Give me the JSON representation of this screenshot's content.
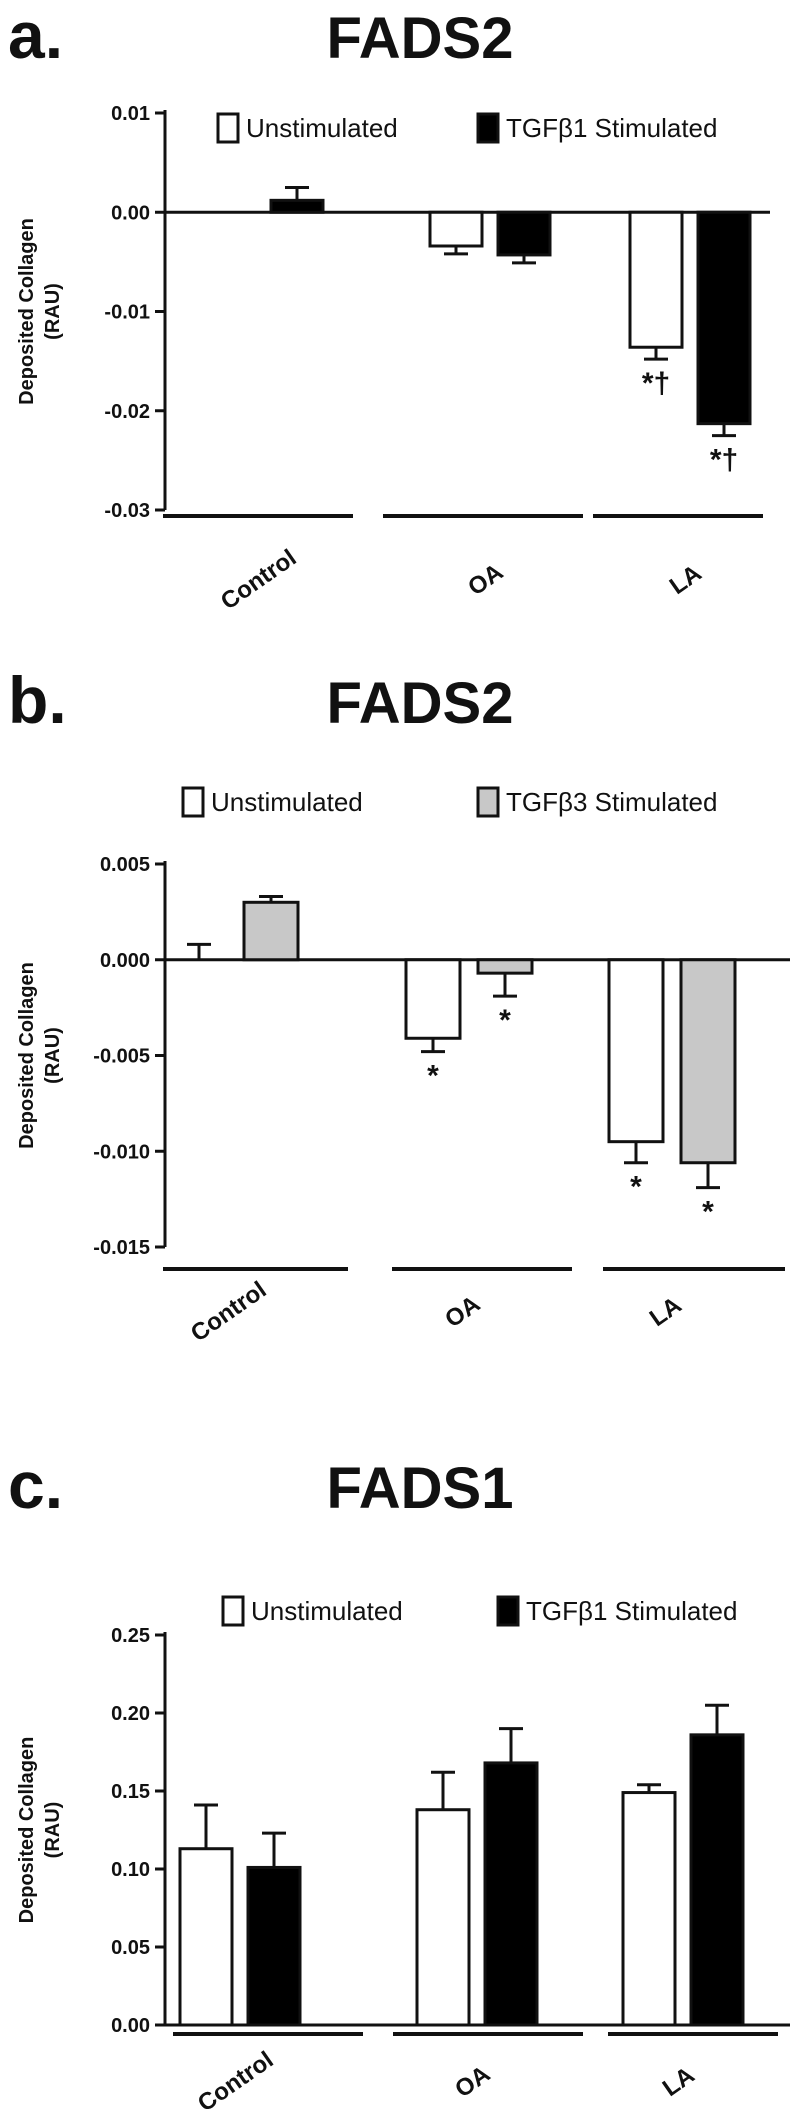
{
  "chart_data": [
    {
      "type": "bar",
      "panel_letter": "a.",
      "title": "FADS2",
      "ylabel_line1": "Deposited Collagen",
      "ylabel_line2": "(RAU)",
      "ylim": [
        -0.03,
        0.01
      ],
      "yticks": [
        "0.01",
        "0.00",
        "-0.01",
        "-0.02",
        "-0.03"
      ],
      "ytick_values": [
        0.01,
        0.0,
        -0.01,
        -0.02,
        -0.03
      ],
      "categories": [
        "Control",
        "OA",
        "LA"
      ],
      "series": [
        {
          "name": "Unstimulated",
          "color": "#ffffff",
          "values": [
            0.0,
            -0.0034,
            -0.0136
          ],
          "errors": [
            0.0,
            0.0008,
            0.0012
          ]
        },
        {
          "name": "TGFβ1 Stimulated",
          "color": "#000000",
          "values": [
            0.0012,
            -0.0043,
            -0.0213
          ],
          "errors": [
            0.0013,
            0.0008,
            0.0012
          ]
        }
      ],
      "annotations": [
        {
          "series": 0,
          "category": 2,
          "text": "*†"
        },
        {
          "series": 1,
          "category": 2,
          "text": "*†"
        }
      ],
      "legend_position": "top"
    },
    {
      "type": "bar",
      "panel_letter": "b.",
      "title": "FADS2",
      "ylabel_line1": "Deposited Collagen",
      "ylabel_line2": "(RAU)",
      "ylim": [
        -0.015,
        0.005
      ],
      "yticks": [
        "0.005",
        "0.000",
        "-0.005",
        "-0.010",
        "-0.015"
      ],
      "ytick_values": [
        0.005,
        0.0,
        -0.005,
        -0.01,
        -0.015
      ],
      "categories": [
        "Control",
        "OA",
        "LA"
      ],
      "series": [
        {
          "name": "Unstimulated",
          "color": "#ffffff",
          "values": [
            0.0,
            -0.0041,
            -0.0095
          ],
          "errors": [
            0.0008,
            0.0007,
            0.0011
          ]
        },
        {
          "name": "TGFβ3 Stimulated",
          "color": "#c8c8c8",
          "values": [
            0.003,
            -0.0007,
            -0.0106
          ],
          "errors": [
            0.0003,
            0.0012,
            0.0013
          ]
        }
      ],
      "annotations": [
        {
          "series": 0,
          "category": 1,
          "text": "*"
        },
        {
          "series": 1,
          "category": 1,
          "text": "*"
        },
        {
          "series": 0,
          "category": 2,
          "text": "*"
        },
        {
          "series": 1,
          "category": 2,
          "text": "*"
        }
      ],
      "legend_position": "top"
    },
    {
      "type": "bar",
      "panel_letter": "c.",
      "title": "FADS1",
      "ylabel_line1": "Deposited Collagen",
      "ylabel_line2": "(RAU)",
      "ylim": [
        0.0,
        0.25
      ],
      "yticks": [
        "0.25",
        "0.20",
        "0.15",
        "0.10",
        "0.05",
        "0.00"
      ],
      "ytick_values": [
        0.25,
        0.2,
        0.15,
        0.1,
        0.05,
        0.0
      ],
      "categories": [
        "Control",
        "OA",
        "LA"
      ],
      "series": [
        {
          "name": "Unstimulated",
          "color": "#ffffff",
          "values": [
            0.113,
            0.138,
            0.149
          ],
          "errors": [
            0.028,
            0.024,
            0.005
          ]
        },
        {
          "name": "TGFβ1 Stimulated",
          "color": "#000000",
          "values": [
            0.101,
            0.168,
            0.186
          ],
          "errors": [
            0.022,
            0.022,
            0.019
          ]
        }
      ],
      "annotations": [],
      "legend_position": "top"
    }
  ]
}
